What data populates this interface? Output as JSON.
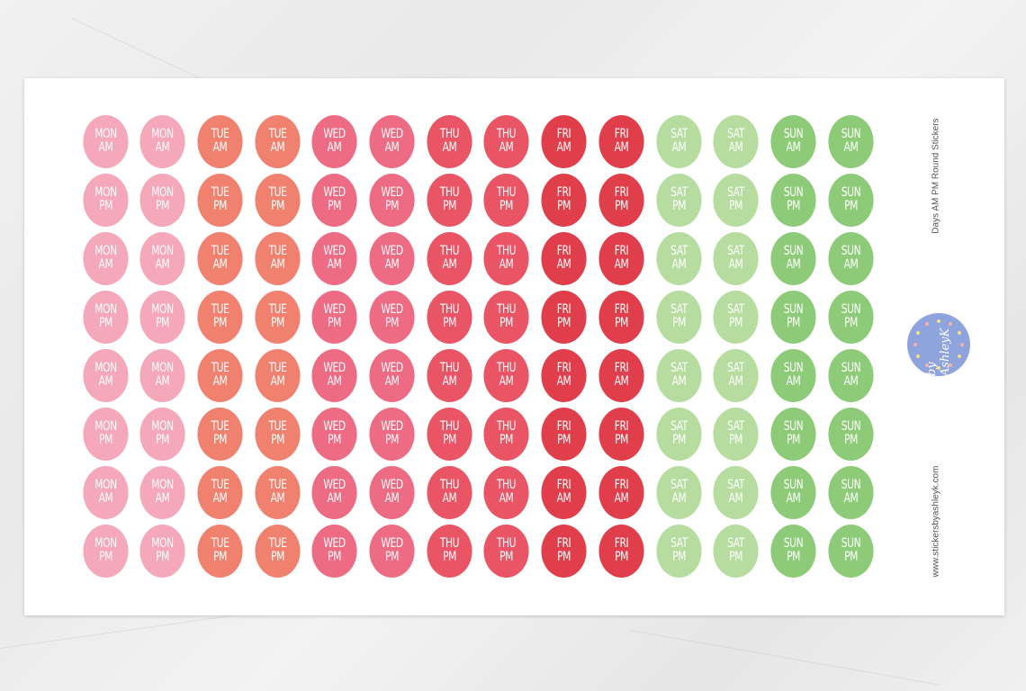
{
  "sheet": {
    "title": "Days AM PM Round Stickers",
    "website": "www.stickersbyashleyk.com",
    "logo_text": "by AshleyK",
    "logo_color": "#8fa4dc"
  },
  "stickers": {
    "columns": [
      {
        "day": "MON",
        "color": "#f4a8ba"
      },
      {
        "day": "MON",
        "color": "#f4a8ba"
      },
      {
        "day": "TUE",
        "color": "#f0816f"
      },
      {
        "day": "TUE",
        "color": "#f0816f"
      },
      {
        "day": "WED",
        "color": "#ee6b84"
      },
      {
        "day": "WED",
        "color": "#ee6b84"
      },
      {
        "day": "THU",
        "color": "#ea5565"
      },
      {
        "day": "THU",
        "color": "#ea5565"
      },
      {
        "day": "FRI",
        "color": "#e03e4b"
      },
      {
        "day": "FRI",
        "color": "#e03e4b"
      },
      {
        "day": "SAT",
        "color": "#b6dd9f"
      },
      {
        "day": "SAT",
        "color": "#b6dd9f"
      },
      {
        "day": "SUN",
        "color": "#8ecb78"
      },
      {
        "day": "SUN",
        "color": "#8ecb78"
      }
    ],
    "row_periods": [
      "AM",
      "PM",
      "AM",
      "PM",
      "AM",
      "PM",
      "AM",
      "PM"
    ]
  }
}
